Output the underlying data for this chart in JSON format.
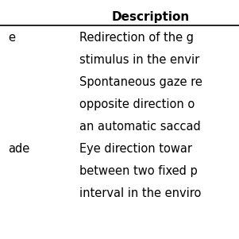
{
  "header": "Description",
  "header_fontsize": 11,
  "row1_left": "e",
  "row1_text_lines": [
    "Redirection of the g",
    "stimulus in the envir",
    "Spontaneous gaze re",
    "opposite direction o",
    "an automatic saccad"
  ],
  "row2_left": "ade",
  "row2_text_lines": [
    "Eye direction towar",
    "between two fixed p",
    "interval in the enviro"
  ],
  "body_fontsize": 10.5,
  "background_color": "#ffffff",
  "text_color": "#000000",
  "line_color": "#000000"
}
